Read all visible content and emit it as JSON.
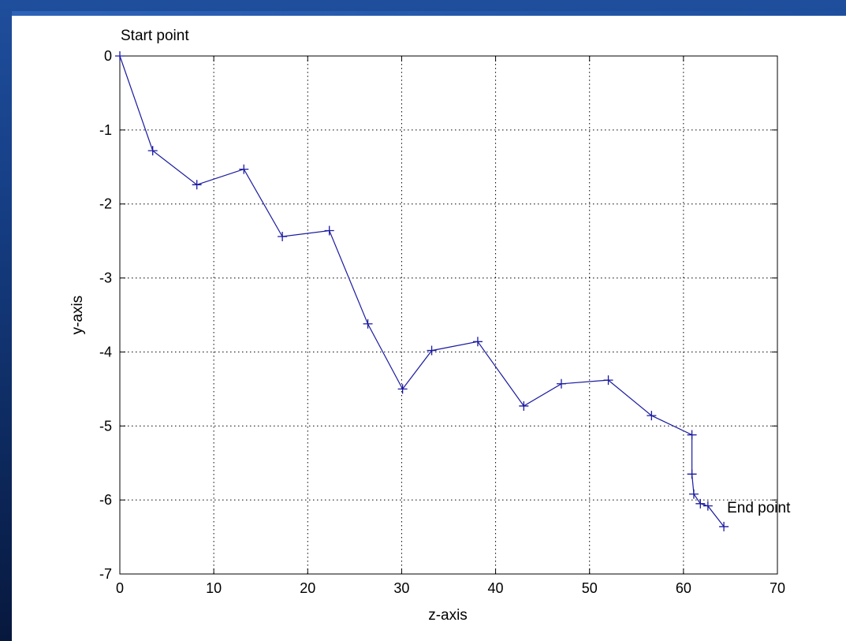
{
  "colors": {
    "series": "#1a1aa0",
    "axis": "#000000",
    "grid": "#000000",
    "background": "#ffffff"
  },
  "chart_data": {
    "type": "line",
    "title": "",
    "xlabel": "z-axis",
    "ylabel": "y-axis",
    "xlim": [
      0,
      70
    ],
    "ylim": [
      -7,
      0
    ],
    "xticks": [
      0,
      10,
      20,
      30,
      40,
      50,
      60,
      70
    ],
    "yticks": [
      0,
      -1,
      -2,
      -3,
      -4,
      -5,
      -6,
      -7
    ],
    "grid": true,
    "grid_style": "dotted",
    "marker": "plus",
    "series": [
      {
        "x": [
          0,
          3.5,
          8.2,
          13.2,
          17.3,
          22.3,
          26.4,
          30.1,
          33.2,
          38.1,
          43.0,
          47.0,
          52.0,
          56.6,
          60.9,
          60.9,
          61.1,
          61.8,
          62.6,
          64.3
        ],
        "y": [
          0,
          -1.28,
          -1.74,
          -1.53,
          -2.44,
          -2.36,
          -3.62,
          -4.5,
          -3.98,
          -3.86,
          -4.73,
          -4.43,
          -4.38,
          -4.86,
          -5.12,
          -5.65,
          -5.92,
          -6.05,
          -6.08,
          -6.36
        ]
      }
    ],
    "annotations": [
      {
        "text": "Start point",
        "x": 0,
        "y": 0
      },
      {
        "text": "End point",
        "x": 64.3,
        "y": -6.36
      }
    ]
  }
}
